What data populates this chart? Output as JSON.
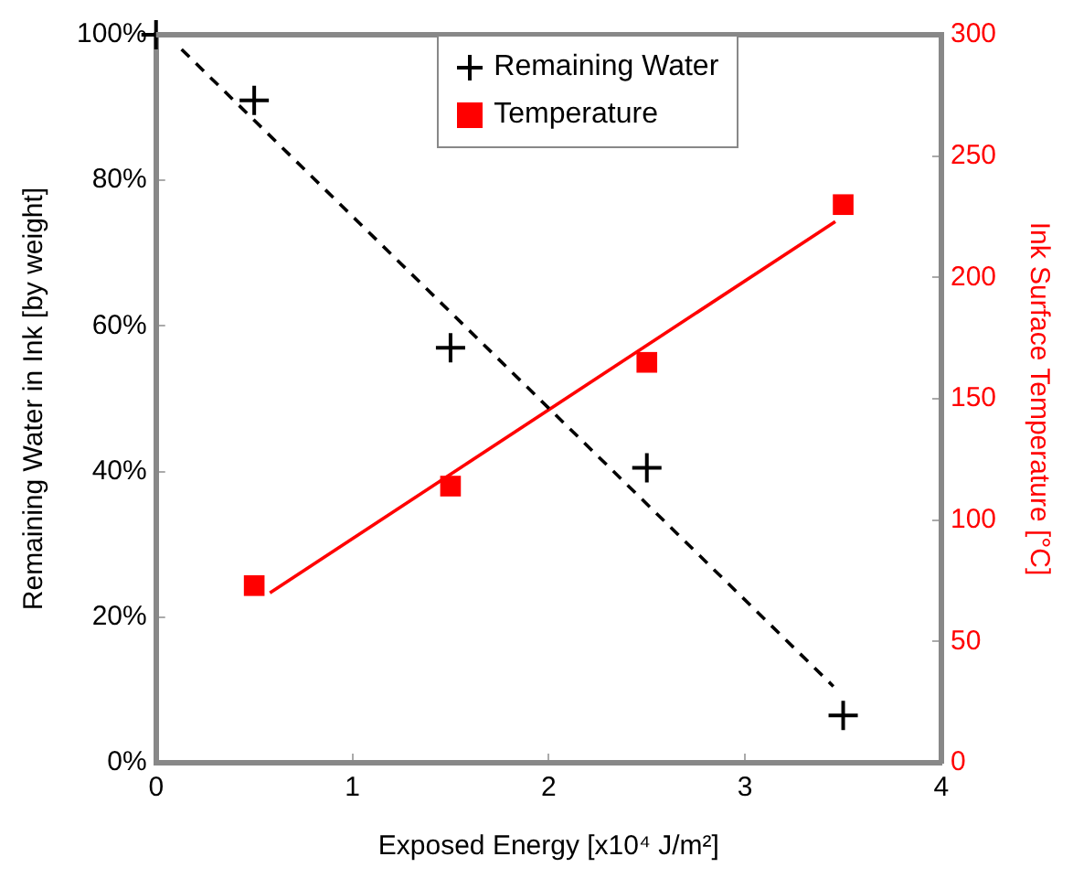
{
  "chart_data": {
    "type": "scatter",
    "xlabel": "Exposed Energy [x10⁴ J/m²]",
    "ylabel": "Remaining Water in Ink [by weight]",
    "y2label": "Ink Surface Temperature [°C]",
    "xlim": [
      0,
      4
    ],
    "xticks": [
      0,
      1,
      2,
      3,
      4
    ],
    "ylim": [
      0,
      100
    ],
    "yticks": [
      {
        "value": 0,
        "label": "0%"
      },
      {
        "value": 20,
        "label": "20%"
      },
      {
        "value": 40,
        "label": "40%"
      },
      {
        "value": 60,
        "label": "60%"
      },
      {
        "value": 80,
        "label": "80%"
      },
      {
        "value": 100,
        "label": "100%"
      }
    ],
    "y2lim": [
      0,
      300
    ],
    "y2ticks": [
      0,
      50,
      100,
      150,
      200,
      250,
      300
    ],
    "grid": false,
    "legend": "top",
    "series": [
      {
        "type": "line",
        "color": "#000000",
        "x": [
          0.13,
          3.45
        ],
        "values": [
          98,
          10.5
        ],
        "marker": "none",
        "line_style": "dashed"
      },
      {
        "type": "line",
        "color": "#ff0000",
        "x": [
          0.58,
          3.46
        ],
        "values": [
          70,
          223
        ],
        "axis": "y2",
        "marker": "none",
        "line_style": "solid"
      },
      {
        "type": "scatter",
        "name": "Remaining Water",
        "color": "#000000",
        "x": [
          0,
          0.5,
          1.5,
          2.5,
          3.5
        ],
        "values": [
          100,
          91,
          57,
          40.5,
          6.5
        ],
        "marker": "cross"
      },
      {
        "type": "scatter",
        "name": "Temperature",
        "color": "#ff0000",
        "x": [
          0.5,
          1.5,
          2.5,
          3.5
        ],
        "values": [
          73,
          114,
          165,
          230
        ],
        "axis": "y2",
        "marker": "square"
      }
    ]
  }
}
